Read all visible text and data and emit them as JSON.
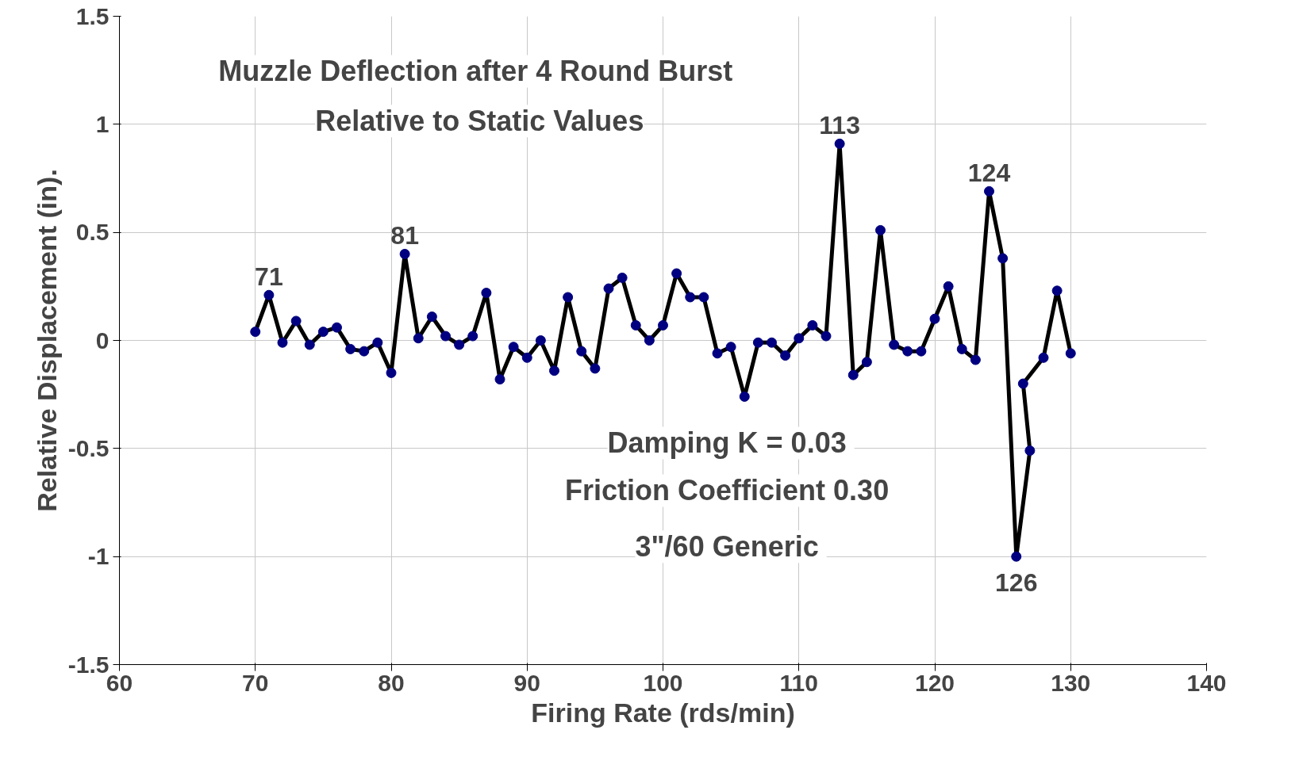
{
  "chart_data": {
    "type": "line",
    "title": "Muzzle Deflection after 4  Round Burst\nRelative to Static Values",
    "xlabel": "Firing Rate (rds/min)",
    "ylabel": "Relative Displacement (in).",
    "xlim": [
      60,
      140
    ],
    "xticks": [
      60,
      70,
      80,
      90,
      100,
      110,
      120,
      130,
      140
    ],
    "ylim": [
      -1.5,
      1.5
    ],
    "yticks": [
      -1.5,
      -1,
      -0.5,
      0,
      0.5,
      1,
      1.5
    ],
    "grid": true,
    "marker": "circle",
    "line_style": "solid",
    "series": [
      {
        "color": "#000000",
        "x": [
          70,
          71,
          72,
          73,
          74,
          75,
          76,
          77,
          78,
          79,
          80,
          81,
          82,
          83,
          84,
          85,
          86,
          87,
          88,
          89,
          90,
          91,
          92,
          93,
          94,
          95,
          96,
          97,
          98,
          99,
          100,
          101,
          102,
          103,
          104,
          105,
          106,
          107,
          108,
          109,
          110,
          111,
          112,
          113,
          114,
          115,
          116,
          117,
          118,
          119,
          120,
          121,
          122,
          123,
          124,
          125,
          126,
          127,
          126.5,
          128,
          129,
          130
        ],
        "values": [
          0.04,
          0.21,
          -0.01,
          0.09,
          -0.02,
          0.04,
          0.06,
          -0.04,
          -0.05,
          -0.01,
          -0.15,
          0.4,
          0.01,
          0.11,
          0.02,
          -0.02,
          0.02,
          0.22,
          -0.18,
          -0.03,
          -0.08,
          0.0,
          -0.14,
          0.2,
          -0.05,
          -0.13,
          0.24,
          0.29,
          0.07,
          0.0,
          0.07,
          0.31,
          0.2,
          0.2,
          -0.06,
          -0.03,
          -0.26,
          -0.01,
          -0.01,
          -0.07,
          0.01,
          0.07,
          0.02,
          0.91,
          -0.16,
          -0.1,
          0.51,
          -0.02,
          -0.05,
          -0.05,
          0.1,
          0.25,
          -0.04,
          -0.09,
          0.69,
          0.38,
          -1.0,
          -0.51,
          -0.2,
          -0.08,
          0.23,
          -0.06
        ]
      }
    ],
    "annotations": [
      {
        "text": "71",
        "x": 71,
        "y": 0.21
      },
      {
        "text": "81",
        "x": 81,
        "y": 0.4
      },
      {
        "text": "113",
        "x": 113,
        "y": 0.91
      },
      {
        "text": "124",
        "x": 124,
        "y": 0.69
      },
      {
        "text": "126",
        "x": 126,
        "y": -1.0
      },
      "Damping K =  0.03\nFriction Coefficient  0.30",
      "3\"/60  Generic"
    ]
  }
}
